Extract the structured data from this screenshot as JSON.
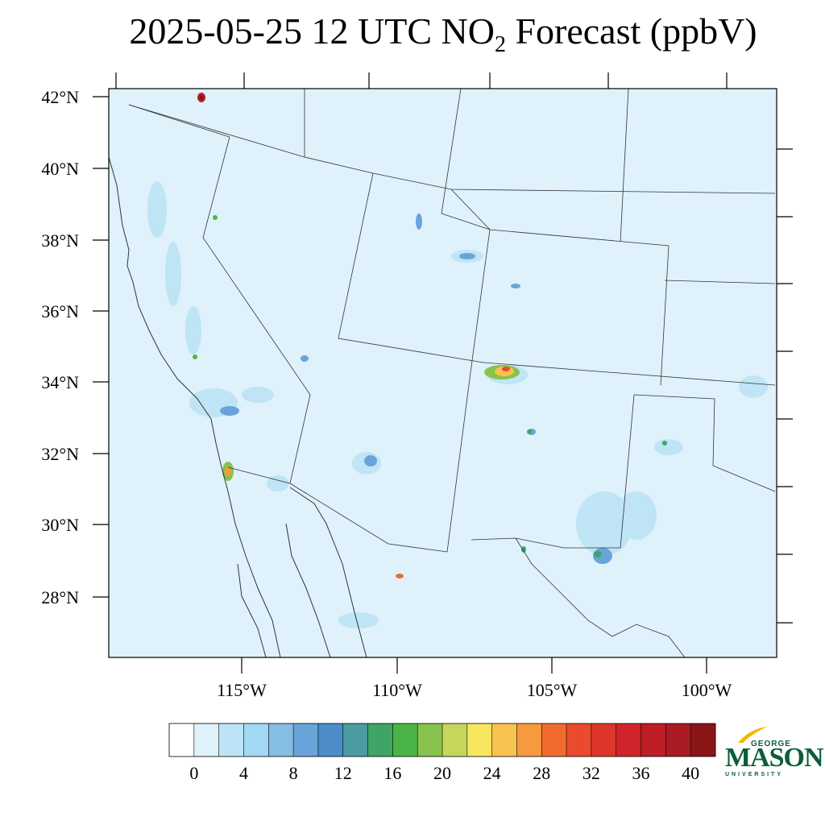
{
  "title": {
    "prefix": "2025-05-25 12 UTC NO",
    "subscript": "2",
    "suffix": " Forecast (ppbV)"
  },
  "map": {
    "latitude_labels": [
      "42°N",
      "40°N",
      "38°N",
      "36°N",
      "34°N",
      "32°N",
      "30°N",
      "28°N"
    ],
    "longitude_labels": [
      "115°W",
      "110°W",
      "105°W",
      "100°W"
    ],
    "colors": {
      "ocean_land_base": "#dff1fb",
      "border": "#333333"
    }
  },
  "colorbar": {
    "colors": [
      "#ffffff",
      "#dff1fb",
      "#bde4f6",
      "#a1d8f3",
      "#86bde3",
      "#68a4d9",
      "#4b8cc9",
      "#4a9ca0",
      "#3fa567",
      "#4ab546",
      "#88c24d",
      "#c5d65a",
      "#f6e65e",
      "#f8c250",
      "#f59a3e",
      "#f06a2e",
      "#e94b2c",
      "#de3628",
      "#d1232a",
      "#be1d25",
      "#aa1a22",
      "#8b1618"
    ],
    "tick_labels": [
      "0",
      "4",
      "8",
      "12",
      "16",
      "20",
      "24",
      "28",
      "32",
      "36",
      "40"
    ]
  },
  "logo": {
    "top": "GEORGE",
    "main": "MASON",
    "bottom": "UNIVERSITY",
    "colors": {
      "green": "#0b5e3a",
      "gold": "#f2b705"
    }
  }
}
